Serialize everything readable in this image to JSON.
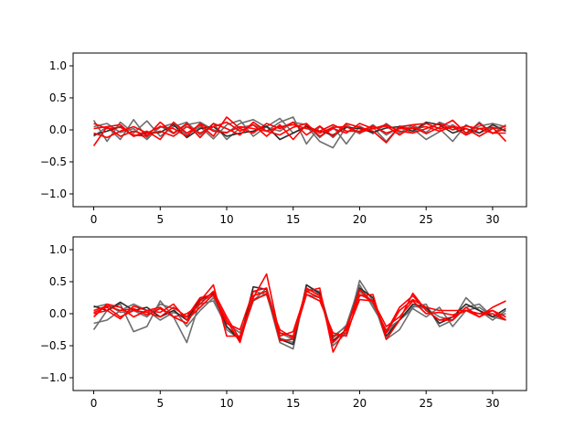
{
  "chart_data": [
    {
      "type": "line",
      "title": "",
      "xlabel": "",
      "ylabel": "",
      "xlim": [
        -1.55,
        32.55
      ],
      "ylim": [
        -1.2,
        1.2
      ],
      "xticks": [
        0,
        5,
        10,
        15,
        20,
        25,
        30
      ],
      "yticks": [
        -1.0,
        -0.5,
        0.0,
        0.5,
        1.0
      ],
      "xtick_labels": [
        "0",
        "5",
        "10",
        "15",
        "20",
        "25",
        "30"
      ],
      "ytick_labels": [
        "−1.0",
        "−0.5",
        "0.0",
        "0.5",
        "1.0"
      ],
      "grid": false,
      "legend": "none",
      "x": [
        0,
        1,
        2,
        3,
        4,
        5,
        6,
        7,
        8,
        9,
        10,
        11,
        12,
        13,
        14,
        15,
        16,
        17,
        18,
        19,
        20,
        21,
        22,
        23,
        24,
        25,
        26,
        27,
        28,
        29,
        30,
        31
      ],
      "series": [
        {
          "color": "#6e6e6e",
          "values": [
            0.15,
            -0.18,
            0.12,
            -0.05,
            0.14,
            -0.1,
            0.05,
            0.12,
            -0.08,
            0.1,
            -0.15,
            0.03,
            0.08,
            -0.02,
            0.12,
            0.2,
            -0.22,
            0.05,
            -0.12,
            0.08,
            -0.05,
            0.04,
            -0.18,
            0.06,
            0.02,
            -0.15,
            -0.03,
            0.08,
            -0.05,
            0.06,
            0.1,
            0.05
          ]
        },
        {
          "color": "#6e6e6e",
          "values": [
            -0.1,
            0.05,
            -0.15,
            0.16,
            -0.12,
            0.04,
            0.1,
            -0.08,
            0.05,
            -0.14,
            0.08,
            0.15,
            -0.1,
            0.05,
            0.18,
            -0.05,
            0.06,
            -0.18,
            -0.28,
            0.05,
            -0.06,
            0.08,
            -0.08,
            0.04,
            -0.05,
            0.1,
            0.02,
            -0.18,
            0.08,
            -0.05,
            0.04,
            -0.02
          ]
        },
        {
          "color": "#6e6e6e",
          "values": [
            0.05,
            0.1,
            -0.04,
            0.02,
            -0.15,
            0.06,
            -0.06,
            0.08,
            0.12,
            0.0,
            -0.05,
            0.1,
            0.16,
            0.04,
            -0.02,
            0.12,
            0.08,
            -0.12,
            0.05,
            -0.22,
            0.06,
            -0.06,
            0.1,
            -0.05,
            0.08,
            -0.04,
            0.12,
            0.04,
            -0.08,
            0.12,
            -0.06,
            0.08
          ]
        },
        {
          "color": "#2a2a2a",
          "values": [
            -0.08,
            -0.02,
            0.05,
            -0.1,
            -0.05,
            -0.04,
            0.08,
            -0.12,
            0.02,
            0.05,
            -0.1,
            -0.05,
            -0.02,
            0.06,
            -0.15,
            -0.05,
            0.05,
            -0.02,
            -0.08,
            0.04,
            0.02,
            -0.04,
            0.03,
            0.05,
            -0.02,
            0.12,
            0.08,
            -0.05,
            0.02,
            -0.05,
            0.08,
            -0.02
          ]
        },
        {
          "color": "#ff0000",
          "values": [
            -0.25,
            0.05,
            0.08,
            -0.1,
            -0.02,
            -0.15,
            0.12,
            -0.05,
            0.08,
            -0.1,
            0.2,
            0.02,
            -0.05,
            0.1,
            0.02,
            0.12,
            -0.08,
            0.06,
            -0.1,
            0.1,
            0.04,
            -0.02,
            -0.2,
            0.05,
            0.08,
            0.1,
            0.02,
            0.05,
            -0.08,
            0.02,
            0.04,
            -0.18
          ]
        },
        {
          "color": "#ff0000",
          "values": [
            0.1,
            0.02,
            0.04,
            -0.08,
            -0.1,
            0.12,
            -0.05,
            0.1,
            -0.12,
            0.1,
            0.02,
            -0.08,
            0.12,
            -0.02,
            -0.08,
            0.04,
            0.1,
            -0.1,
            0.02,
            -0.05,
            0.1,
            0.02,
            0.06,
            -0.08,
            0.05,
            -0.06,
            0.04,
            0.15,
            -0.05,
            0.1,
            -0.05,
            0.02
          ]
        },
        {
          "color": "#ff0000",
          "values": [
            -0.05,
            -0.12,
            -0.02,
            0.05,
            -0.05,
            0.05,
            0.02,
            -0.1,
            0.1,
            -0.02,
            -0.04,
            0.05,
            0.02,
            -0.02,
            0.05,
            0.08,
            0.02,
            -0.02,
            0.08,
            -0.02,
            -0.02,
            0.06,
            -0.05,
            0.02,
            0.02,
            0.05,
            -0.02,
            0.05,
            0.02,
            -0.1,
            0.02,
            0.05
          ]
        },
        {
          "color": "#ff0000",
          "values": [
            0.02,
            0.05,
            -0.1,
            -0.02,
            -0.08,
            -0.02,
            -0.1,
            0.05,
            -0.05,
            0.05,
            0.12,
            -0.02,
            0.08,
            -0.1,
            0.08,
            -0.15,
            0.08,
            -0.05,
            0.04,
            0.05,
            -0.04,
            0.02,
            0.08,
            -0.02,
            -0.05,
            0.02,
            0.1,
            0.0,
            0.06,
            0.02,
            -0.05,
            -0.05
          ]
        }
      ]
    },
    {
      "type": "line",
      "title": "",
      "xlabel": "",
      "ylabel": "",
      "xlim": [
        -1.55,
        32.55
      ],
      "ylim": [
        -1.2,
        1.2
      ],
      "xticks": [
        0,
        5,
        10,
        15,
        20,
        25,
        30
      ],
      "yticks": [
        -1.0,
        -0.5,
        0.0,
        0.5,
        1.0
      ],
      "xtick_labels": [
        "0",
        "5",
        "10",
        "15",
        "20",
        "25",
        "30"
      ],
      "ytick_labels": [
        "−1.0",
        "−0.5",
        "0.0",
        "0.5",
        "1.0"
      ],
      "grid": false,
      "legend": "none",
      "x": [
        0,
        1,
        2,
        3,
        4,
        5,
        6,
        7,
        8,
        9,
        10,
        11,
        12,
        13,
        14,
        15,
        16,
        17,
        18,
        19,
        20,
        21,
        22,
        23,
        24,
        25,
        26,
        27,
        28,
        29,
        30,
        31
      ],
      "series": [
        {
          "color": "#6e6e6e",
          "values": [
            -0.25,
            0.05,
            0.15,
            -0.28,
            -0.2,
            0.2,
            -0.05,
            -0.45,
            0.2,
            0.28,
            -0.25,
            -0.4,
            0.2,
            0.32,
            -0.45,
            -0.55,
            0.45,
            0.3,
            -0.5,
            -0.3,
            0.52,
            0.2,
            -0.4,
            -0.25,
            0.1,
            0.15,
            -0.2,
            -0.1,
            0.25,
            0.05,
            -0.1,
            0.05
          ]
        },
        {
          "color": "#6e6e6e",
          "values": [
            -0.15,
            -0.1,
            0.05,
            0.15,
            0.05,
            -0.1,
            0.02,
            -0.05,
            0.15,
            0.2,
            -0.2,
            -0.38,
            0.35,
            0.3,
            -0.38,
            -0.45,
            0.38,
            0.35,
            -0.38,
            -0.18,
            0.45,
            0.1,
            -0.25,
            -0.1,
            0.12,
            0.08,
            -0.05,
            -0.1,
            0.1,
            0.15,
            -0.05,
            -0.1
          ]
        },
        {
          "color": "#6e6e6e",
          "values": [
            0.1,
            0.15,
            0.02,
            0.05,
            -0.05,
            0.15,
            0.08,
            -0.2,
            0.05,
            0.25,
            -0.15,
            -0.3,
            0.2,
            0.4,
            -0.3,
            -0.4,
            0.3,
            0.25,
            -0.35,
            -0.2,
            0.35,
            0.15,
            -0.3,
            -0.1,
            0.08,
            -0.05,
            0.1,
            -0.2,
            0.05,
            0.1,
            -0.05,
            0.0
          ]
        },
        {
          "color": "#2a2a2a",
          "values": [
            0.12,
            0.05,
            0.18,
            0.05,
            0.1,
            -0.05,
            0.05,
            -0.1,
            0.22,
            0.32,
            -0.2,
            -0.42,
            0.42,
            0.38,
            -0.4,
            -0.48,
            0.45,
            0.32,
            -0.42,
            -0.25,
            0.4,
            0.25,
            -0.35,
            -0.1,
            0.15,
            0.1,
            -0.15,
            -0.05,
            0.15,
            0.05,
            -0.05,
            0.08
          ]
        },
        {
          "color": "#ff0000",
          "values": [
            0.05,
            0.12,
            0.05,
            0.08,
            -0.02,
            0.08,
            -0.05,
            -0.15,
            0.2,
            0.45,
            -0.35,
            -0.35,
            0.25,
            0.62,
            -0.35,
            -0.28,
            0.35,
            0.4,
            -0.6,
            -0.2,
            0.28,
            0.3,
            -0.4,
            -0.1,
            0.32,
            0.05,
            -0.1,
            -0.05,
            0.05,
            -0.05,
            0.05,
            -0.1
          ]
        },
        {
          "color": "#ff0000",
          "values": [
            -0.05,
            0.15,
            0.1,
            -0.05,
            0.05,
            0.02,
            0.15,
            -0.1,
            0.1,
            0.3,
            -0.1,
            -0.45,
            0.28,
            0.35,
            -0.3,
            -0.35,
            0.4,
            0.28,
            -0.45,
            -0.25,
            0.38,
            0.18,
            -0.28,
            0.1,
            0.28,
            0.05,
            -0.1,
            -0.1,
            0.1,
            -0.05,
            0.1,
            0.2
          ]
        },
        {
          "color": "#ff0000",
          "values": [
            0.02,
            0.1,
            -0.05,
            0.05,
            0.02,
            -0.05,
            0.1,
            -0.05,
            0.25,
            0.3,
            -0.15,
            -0.25,
            0.35,
            0.4,
            -0.42,
            -0.4,
            0.35,
            0.25,
            -0.35,
            -0.3,
            0.22,
            0.2,
            -0.2,
            -0.05,
            0.2,
            0.0,
            0.02,
            -0.02,
            0.05,
            0.0,
            0.05,
            -0.05
          ]
        },
        {
          "color": "#ff0000",
          "values": [
            0.0,
            0.05,
            -0.08,
            0.12,
            0.05,
            0.1,
            -0.05,
            0.0,
            0.15,
            0.35,
            -0.05,
            -0.4,
            0.22,
            0.3,
            -0.25,
            -0.38,
            0.3,
            0.2,
            -0.3,
            -0.35,
            0.3,
            0.2,
            -0.3,
            0.05,
            0.22,
            0.1,
            0.05,
            0.05,
            0.05,
            0.0,
            0.0,
            -0.1
          ]
        }
      ]
    }
  ]
}
